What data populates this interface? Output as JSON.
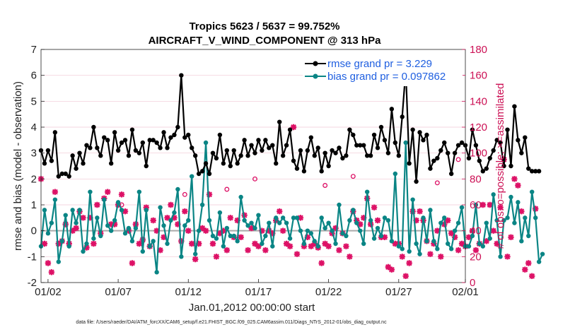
{
  "colors": {
    "rmse": "#000000",
    "bias": "#0a8585",
    "obs": "#dd1166",
    "right_axis": "#cc1155",
    "legend_text": "#1f5fe0",
    "zero_line": "#aaaaaa",
    "grid": "#f0c8d4"
  },
  "chart_data": {
    "type": "line",
    "title": "Tropics 5623 / 5637 = 99.752%",
    "subtitle": "AIRCRAFT_V_WIND_COMPONENT @ 313 hPa",
    "xlabel": "Jan.01,2012 00:00:00 start",
    "ylabel": "rmse and bias (model - observation)",
    "ylabel_right": "# of obs: o=possible; ×=assimilated",
    "xlim": [
      0.75,
      31.0
    ],
    "ylim": [
      -2,
      7
    ],
    "ylim_right": [
      0,
      180
    ],
    "x_ticks": [
      1.25,
      6.25,
      11.25,
      16.25,
      21.25,
      26.25,
      31.0
    ],
    "x_tick_labels": [
      "01/02",
      "01/07",
      "01/12",
      "01/17",
      "01/22",
      "01/27",
      "02/01"
    ],
    "y_ticks": [
      -2,
      -1,
      0,
      1,
      2,
      3,
      4,
      5,
      6,
      7
    ],
    "y_tick_labels": [
      "-2",
      "-1",
      "0",
      "1",
      "2",
      "3",
      "4",
      "5",
      "6",
      "7"
    ],
    "y_right_ticks": [
      0,
      20,
      40,
      60,
      80,
      100,
      120,
      140,
      160,
      180
    ],
    "y_right_tick_labels": [
      "0",
      "20",
      "40",
      "60",
      "80",
      "100",
      "120",
      "140",
      "160",
      "180"
    ],
    "legend_position": "top-right",
    "series": [
      {
        "name": "rmse grand pr = 3.229",
        "x_start": 0.75,
        "x_step": 0.25,
        "values": [
          3.1,
          2.6,
          3.1,
          2.7,
          3.8,
          2.1,
          2.2,
          2.2,
          2.1,
          2.9,
          2.4,
          3.0,
          2.6,
          3.3,
          3.2,
          4.0,
          3.2,
          2.9,
          3.6,
          3.5,
          2.6,
          3.8,
          3.1,
          3.4,
          3.5,
          2.9,
          3.9,
          3.1,
          3.0,
          3.4,
          2.5,
          3.5,
          3.5,
          3.4,
          3.2,
          3.8,
          3.2,
          3.6,
          3.7,
          4.0,
          6.0,
          3.6,
          3.7,
          3.2,
          2.9,
          2.2,
          2.3,
          2.6,
          2.2,
          3.0,
          2.8,
          3.7,
          2.6,
          3.1,
          2.5,
          3.1,
          2.6,
          2.9,
          3.5,
          2.9,
          3.3,
          3.0,
          3.5,
          3.1,
          3.5,
          3.2,
          3.3,
          2.6,
          4.2,
          2.9,
          3.3,
          3.9,
          2.7,
          2.4,
          3.1,
          2.3,
          3.1,
          3.6,
          2.9,
          3.2,
          2.3,
          3.0,
          2.5,
          3.1,
          3.0,
          3.2,
          2.8,
          2.9,
          3.9,
          3.7,
          3.3,
          3.3,
          3.3,
          2.9,
          2.9,
          3.7,
          3.2,
          4.0,
          3.5,
          3.0,
          4.7,
          3.4,
          2.9,
          4.4,
          6.2,
          2.6,
          3.9,
          1.9,
          3.8,
          3.5,
          3.7,
          2.4,
          2.7,
          2.8,
          3.1,
          3.4,
          3.0,
          2.2,
          3.0,
          3.3,
          3.4,
          3.3,
          2.8,
          3.9,
          3.3,
          2.7,
          2.3,
          2.4,
          2.8,
          3.1,
          3.5,
          3.4,
          2.5,
          3.9,
          2.5,
          4.8,
          3.5,
          3.0,
          3.6,
          2.4,
          2.3,
          2.3,
          2.3
        ]
      },
      {
        "name": "bias grand pr = 0.097862",
        "x_start": 0.75,
        "x_step": 0.25,
        "values": [
          -0.6,
          0.8,
          -0.1,
          0.3,
          1.2,
          -1.2,
          -0.4,
          0.6,
          -0.6,
          0.8,
          0.3,
          0.8,
          -0.8,
          -0.5,
          1.5,
          -0.3,
          0.5,
          -0.2,
          1.2,
          0.2,
          0.0,
          0.4,
          1.1,
          0.8,
          -0.1,
          0.1,
          -0.4,
          0.1,
          1.5,
          -0.8,
          0.8,
          -0.6,
          -0.4,
          -1.6,
          0.9,
          0.2,
          -0.5,
          0.4,
          0.7,
          1.6,
          -1.0,
          0.2,
          0.4,
          2.1,
          -0.9,
          0.0,
          1.0,
          3.4,
          0.4,
          -0.2,
          -0.3,
          0.7,
          -0.6,
          0.1,
          -0.2,
          -0.2,
          -0.4,
          1.3,
          0.4,
          0.2,
          0.3,
          0.1,
          0.6,
          -0.5,
          -0.2,
          0.3,
          -0.6,
          0.5,
          0.3,
          0.5,
          0.3,
          -0.3,
          0.5,
          0.5,
          0.0,
          -0.5,
          0.0,
          -0.1,
          -0.4,
          -0.6,
          0.5,
          0.1,
          0.3,
          0.0,
          -0.5,
          1.0,
          -0.1,
          -0.2,
          0.4,
          0.8,
          0.3,
          0.0,
          -0.5,
          1.5,
          0.4,
          -0.3,
          0.1,
          -0.2,
          0.5,
          0.4,
          -0.4,
          2.2,
          -0.6,
          -0.7,
          3.4,
          -0.8,
          1.2,
          -0.5,
          -0.9,
          0.5,
          -0.4,
          0.8,
          -0.4,
          -0.7,
          0.3,
          0.5,
          -0.5,
          -0.7,
          0.0,
          0.3,
          0.9,
          -0.6,
          -0.6,
          -0.2,
          1.0,
          -0.5,
          -0.6,
          0.3,
          -0.3,
          1.4,
          0.4,
          -1.0,
          0.4,
          0.5,
          1.3,
          0.3,
          1.1,
          -0.4,
          0.5,
          -0.2,
          1.5,
          0.5,
          -1.2,
          -0.9
        ]
      },
      {
        "name": "obs assimilated",
        "marker": "x",
        "axis": "right",
        "x_start": 0.75,
        "x_step": 0.25,
        "values": [
          80,
          30,
          15,
          8,
          70,
          30,
          32,
          45,
          30,
          40,
          42,
          55,
          50,
          27,
          50,
          30,
          60,
          38,
          65,
          70,
          45,
          45,
          60,
          68,
          55,
          40,
          15,
          45,
          30,
          33,
          58,
          28,
          48,
          40,
          25,
          35,
          50,
          60,
          50,
          45,
          32,
          55,
          40,
          30,
          18,
          30,
          42,
          40,
          68,
          30,
          20,
          38,
          40,
          25,
          50,
          35,
          48,
          35,
          52,
          25,
          42,
          30,
          28,
          40,
          25,
          40,
          38,
          48,
          55,
          40,
          30,
          28,
          120,
          22,
          50,
          28,
          35,
          28,
          30,
          27,
          15,
          30,
          28,
          38,
          42,
          25,
          38,
          28,
          20,
          55,
          48,
          45,
          50,
          65,
          45,
          58,
          48,
          35,
          35,
          12,
          10,
          30,
          30,
          20,
          5,
          15,
          55,
          48,
          55,
          48,
          32,
          22,
          30,
          40,
          20,
          45,
          48,
          38,
          35,
          25,
          30,
          28,
          35,
          40,
          25,
          30,
          60,
          32,
          60,
          40,
          30,
          58,
          95,
          20,
          35,
          80,
          75,
          55,
          10,
          15,
          5,
          57
        ]
      },
      {
        "name": "obs possible",
        "marker": "o",
        "axis": "right",
        "x": [
          6.5,
          11.0,
          14.0,
          16.0,
          21.0,
          23.0,
          29.0,
          30.5
        ],
        "values": [
          60,
          68,
          72,
          80,
          75,
          82,
          77,
          95
        ]
      }
    ]
  },
  "footer": "data file: /Users/raeder/DAI/ATM_forcXX/CAM6_setup/f.e21.FHIST_BGC.f09_025.CAM6assim.011/Diags_NTrS_2012-01/obs_diag_output.nc"
}
